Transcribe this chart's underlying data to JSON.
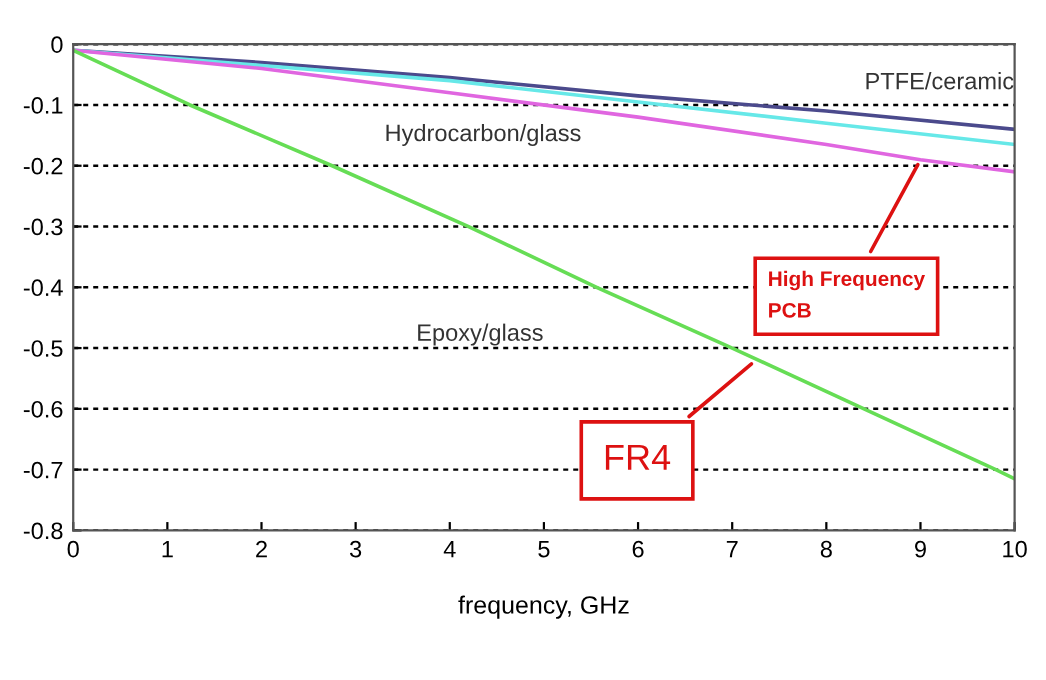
{
  "chart_data": {
    "type": "line",
    "xlabel": "frequency, GHz",
    "xlim": [
      0,
      10
    ],
    "xticks": [
      0,
      1,
      2,
      3,
      4,
      5,
      6,
      7,
      8,
      9,
      10
    ],
    "ylim": [
      -0.8,
      0
    ],
    "yticks": [
      -0.8,
      -0.7,
      -0.6,
      -0.5,
      -0.4,
      -0.3,
      -0.2,
      -0.1,
      0
    ],
    "grid": "y",
    "marker": "none",
    "line_style": "solid",
    "series": [
      {
        "name": "PTFE/ceramic",
        "color": "#4b4a8c",
        "x": [
          0,
          2,
          4,
          6,
          8,
          10
        ],
        "values": [
          -0.01,
          -0.03,
          -0.055,
          -0.085,
          -0.11,
          -0.14
        ]
      },
      {
        "color": "#66e8e8",
        "x": [
          0,
          2,
          4,
          6,
          8,
          10
        ],
        "values": [
          -0.01,
          -0.035,
          -0.06,
          -0.095,
          -0.13,
          -0.165
        ]
      },
      {
        "name": "Hydrocarbon/glass",
        "color": "#e066e0",
        "x": [
          0,
          2,
          4,
          6,
          8,
          9,
          10
        ],
        "values": [
          -0.01,
          -0.04,
          -0.08,
          -0.12,
          -0.165,
          -0.19,
          -0.21
        ]
      },
      {
        "name": "Epoxy/glass",
        "color": "#66dd55",
        "x": [
          0,
          1.24,
          2.75,
          4.2,
          5.56,
          7,
          8.4,
          9.8,
          10
        ],
        "values": [
          -0.01,
          -0.1,
          -0.2,
          -0.3,
          -0.4,
          -0.5,
          -0.6,
          -0.7,
          -0.715
        ]
      }
    ],
    "annotations": [
      {
        "text": "High Frequency\nPCB",
        "x": 9,
        "y": -0.19
      },
      {
        "text": "FR4",
        "x": 7.25,
        "y": -0.52
      }
    ]
  }
}
